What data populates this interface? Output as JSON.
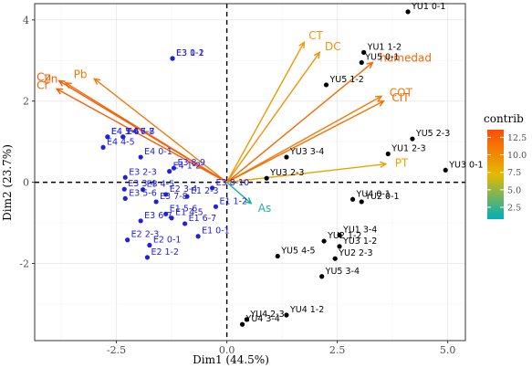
{
  "chart_data": {
    "type": "scatter",
    "title": "",
    "xlabel": "Dim1 (44.5%)",
    "ylabel": "Dim2 (23.7%)",
    "xlim": [
      -4.35,
      5.4
    ],
    "ylim": [
      -3.9,
      4.4
    ],
    "xticks": [
      -2.5,
      0.0,
      2.5,
      5.0
    ],
    "xtick_labels": [
      "-2.5",
      "0.0",
      "2.5",
      "5.0"
    ],
    "yticks": [
      -2,
      0,
      2,
      4
    ],
    "yticks_labels": [
      "-2",
      "0",
      "2",
      "4"
    ],
    "grid": true,
    "legend": {
      "title": "contrib",
      "placement": "right",
      "ticks": [
        12.5,
        10.0,
        7.5,
        5.0,
        2.5
      ],
      "tick_labels": [
        "12.5",
        "10.0",
        "7.5",
        "5.0",
        "2.5"
      ],
      "range": [
        0.8,
        13.6
      ],
      "colors": [
        "#00AFBB",
        "#E7B800",
        "#FC4E07"
      ]
    },
    "series": [
      {
        "name": "E",
        "color": "#2020e0",
        "points": [
          {
            "label": "E3 1-2",
            "x": -1.23,
            "y": 3.05
          },
          {
            "label": "E3 0-1",
            "x": -1.23,
            "y": 3.05
          },
          {
            "label": "E4 3-4",
            "x": -2.7,
            "y": 1.12
          },
          {
            "label": "E4 5-6",
            "x": -2.7,
            "y": 1.12
          },
          {
            "label": "E4 4-5",
            "x": -2.8,
            "y": 0.86
          },
          {
            "label": "E4 6-7",
            "x": -2.35,
            "y": 1.12
          },
          {
            "label": "E4 7-8",
            "x": -2.35,
            "y": 1.12
          },
          {
            "label": "E4 0-1",
            "x": -1.95,
            "y": 0.62
          },
          {
            "label": "E4 1-2",
            "x": -1.3,
            "y": 0.27
          },
          {
            "label": "E3 2-3",
            "x": -2.3,
            "y": 0.12
          },
          {
            "label": "E3 3-4",
            "x": -2.32,
            "y": -0.17
          },
          {
            "label": "E3 4-5",
            "x": -1.9,
            "y": -0.18
          },
          {
            "label": "E3 5-6",
            "x": -2.3,
            "y": -0.4
          },
          {
            "label": "E3 7-8",
            "x": -1.6,
            "y": -0.48
          },
          {
            "label": "E3 6-7",
            "x": -1.95,
            "y": -0.95
          },
          {
            "label": "E3 8-9",
            "x": -1.2,
            "y": 0.35
          },
          {
            "label": "E3 8-10",
            "x": -0.33,
            "y": -0.14
          },
          {
            "label": "E2 3-4",
            "x": -1.38,
            "y": -0.3
          },
          {
            "label": "E1 2-3",
            "x": -0.9,
            "y": -0.35
          },
          {
            "label": "E1 5-6",
            "x": -1.38,
            "y": -0.78
          },
          {
            "label": "E1 4-5",
            "x": -1.25,
            "y": -0.88
          },
          {
            "label": "E1 6-7",
            "x": -0.95,
            "y": -1.02
          },
          {
            "label": "E1 1-2",
            "x": -0.25,
            "y": -0.6
          },
          {
            "label": "E1 0-1",
            "x": -0.65,
            "y": -1.33
          },
          {
            "label": "E2 2-3",
            "x": -2.25,
            "y": -1.42
          },
          {
            "label": "E2 0-1",
            "x": -1.75,
            "y": -1.55
          },
          {
            "label": "E2 1-2",
            "x": -1.8,
            "y": -1.85
          }
        ]
      },
      {
        "name": "YU",
        "color": "#000000",
        "points": [
          {
            "label": "YU1 0-1",
            "x": 4.1,
            "y": 4.2
          },
          {
            "label": "YU1 1-2",
            "x": 3.1,
            "y": 3.2
          },
          {
            "label": "YU5 0-1",
            "x": 3.05,
            "y": 2.95
          },
          {
            "label": "YU5 1-2",
            "x": 2.25,
            "y": 2.4
          },
          {
            "label": "YU5 2-3",
            "x": 4.2,
            "y": 1.07
          },
          {
            "label": "YU1 2-3",
            "x": 3.65,
            "y": 0.7
          },
          {
            "label": "YU3 3-4",
            "x": 1.35,
            "y": 0.62
          },
          {
            "label": "YU3 2-3",
            "x": 0.9,
            "y": 0.1
          },
          {
            "label": "YU3 0-1",
            "x": 4.95,
            "y": 0.3
          },
          {
            "label": "YU4 0-1",
            "x": 2.85,
            "y": -0.42
          },
          {
            "label": "YU2 0-1",
            "x": 3.05,
            "y": -0.48
          },
          {
            "label": "YU1 3-4",
            "x": 2.55,
            "y": -1.3
          },
          {
            "label": "YU2 1-2",
            "x": 2.2,
            "y": -1.45
          },
          {
            "label": "YU3 1-2",
            "x": 2.55,
            "y": -1.58
          },
          {
            "label": "YU2 2-3",
            "x": 2.45,
            "y": -1.88
          },
          {
            "label": "YU5 4-5",
            "x": 1.15,
            "y": -1.82
          },
          {
            "label": "YU5 3-4",
            "x": 2.15,
            "y": -2.32
          },
          {
            "label": "YU4 1-2",
            "x": 1.35,
            "y": -3.27
          },
          {
            "label": "YU4 2-3",
            "x": 0.45,
            "y": -3.38
          },
          {
            "label": "YU4 3-4",
            "x": 0.35,
            "y": -3.5
          }
        ]
      }
    ],
    "variables": [
      {
        "label": "Cu",
        "x": -3.8,
        "y": 2.5,
        "contrib": 12.8
      },
      {
        "label": "Zn",
        "x": -3.65,
        "y": 2.45,
        "contrib": 12.2
      },
      {
        "label": "Cr",
        "x": -3.85,
        "y": 2.3,
        "contrib": 12.5
      },
      {
        "label": "Pb",
        "x": -3.0,
        "y": 2.55,
        "contrib": 11.0
      },
      {
        "label": "CT",
        "x": 1.75,
        "y": 3.45,
        "contrib": 9.0
      },
      {
        "label": "DC",
        "x": 2.1,
        "y": 3.2,
        "contrib": 9.5
      },
      {
        "label": "humedad",
        "x": 3.3,
        "y": 2.95,
        "contrib": 12.0
      },
      {
        "label": "COT",
        "x": 3.5,
        "y": 2.12,
        "contrib": 11.0
      },
      {
        "label": "CIT",
        "x": 3.55,
        "y": 2.0,
        "contrib": 11.5
      },
      {
        "label": "PT",
        "x": 3.6,
        "y": 0.45,
        "contrib": 8.5
      },
      {
        "label": "As",
        "x": 0.55,
        "y": -0.52,
        "contrib": 1.5
      }
    ]
  }
}
